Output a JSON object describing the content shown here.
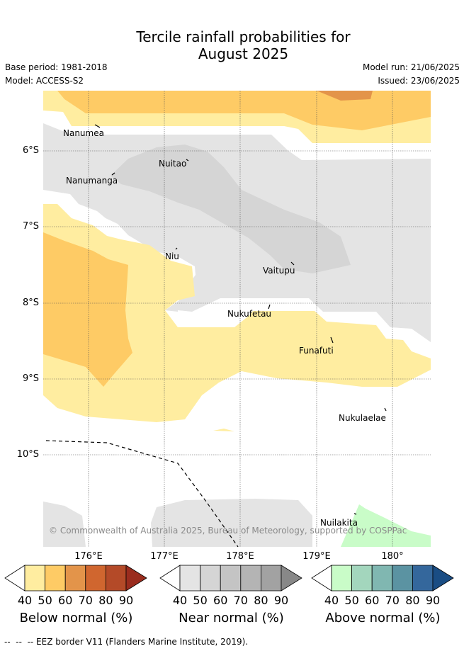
{
  "title_line1": "Tercile rainfall probabilities for",
  "title_line2": "August 2025",
  "base_period": "Base period: 1981-2018",
  "model": "Model: ACCESS-S2",
  "model_run": "Model run: 21/06/2025",
  "issued": "Issued: 23/06/2025",
  "lat_labels": [
    "6°S",
    "7°S",
    "8°S",
    "9°S",
    "10°S"
  ],
  "lon_labels": [
    "176°E",
    "177°E",
    "178°E",
    "179°E",
    "180°"
  ],
  "places": [
    "Nanumea",
    "Nuitao",
    "Nanumanga",
    "Niu",
    "Vaitupu",
    "Nukufetau",
    "Funafuti",
    "Nukulaelae",
    "Nuilakita"
  ],
  "copyright": "© Commonwealth of Australia 2025, Bureau of Meteorology, supported by COSPPac",
  "colorbars": [
    {
      "title": "Below normal (%)",
      "ticks": [
        "40",
        "50",
        "60",
        "70",
        "80",
        "90"
      ],
      "colors": [
        "#ffeda0",
        "#fecb65",
        "#e3944a",
        "#d0662f",
        "#b44a28",
        "#9a2c1e"
      ]
    },
    {
      "title": "Near normal (%)",
      "ticks": [
        "40",
        "50",
        "60",
        "70",
        "80",
        "90"
      ],
      "colors": [
        "#e4e4e4",
        "#d5d5d5",
        "#c4c4c4",
        "#b4b4b4",
        "#a2a2a2",
        "#888888"
      ]
    },
    {
      "title": "Above normal (%)",
      "ticks": [
        "40",
        "50",
        "60",
        "70",
        "80",
        "90"
      ],
      "colors": [
        "#c9fcc8",
        "#a3d6bd",
        "#80b7b1",
        "#5b93a2",
        "#34679c",
        "#1a4d84"
      ]
    }
  ],
  "footer": "--  --  -- EEZ border V11 (Flanders Marine Institute, 2019)."
}
